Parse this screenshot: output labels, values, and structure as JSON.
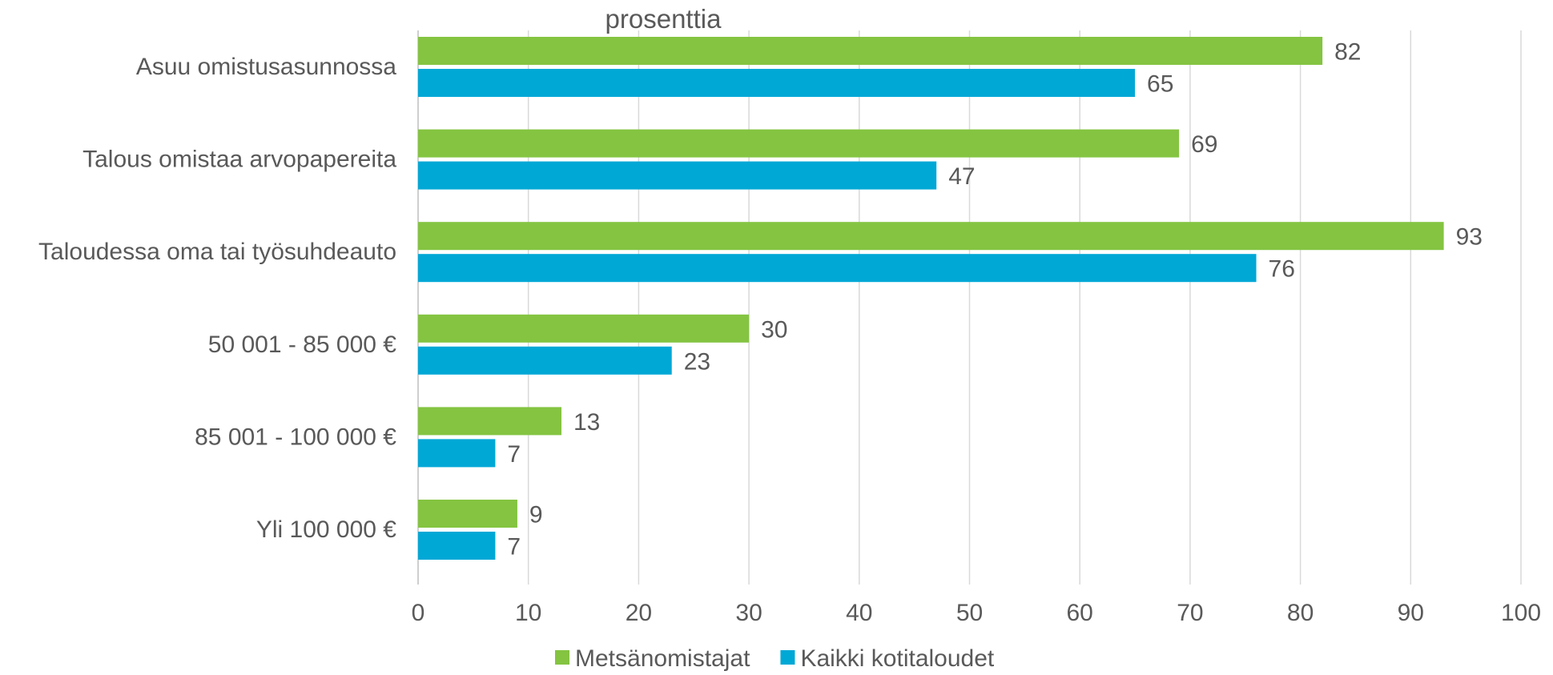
{
  "chart_data": {
    "type": "bar",
    "orientation": "horizontal",
    "title": "",
    "unit_label": "prosenttia",
    "xlabel": "",
    "ylabel": "",
    "categories": [
      "Asuu omistusasunnossa",
      "Talous omistaa arvopapereita",
      "Taloudessa oma tai työsuhdeauto",
      "50 001 - 85 000 €",
      "85 001 - 100 000 €",
      "Yli 100 000 €"
    ],
    "series": [
      {
        "name": "Metsänomistajat",
        "color": "#84c441",
        "values": [
          82,
          69,
          93,
          30,
          13,
          9
        ]
      },
      {
        "name": "Kaikki kotitaloudet",
        "color": "#00a8d6",
        "values": [
          65,
          47,
          76,
          23,
          7,
          7
        ]
      }
    ],
    "xlim": [
      0,
      100
    ],
    "xticks": [
      0,
      10,
      20,
      30,
      40,
      50,
      60,
      70,
      80,
      90,
      100
    ],
    "grid": "vertical",
    "legend": "bottom-center",
    "data_labels": true
  }
}
